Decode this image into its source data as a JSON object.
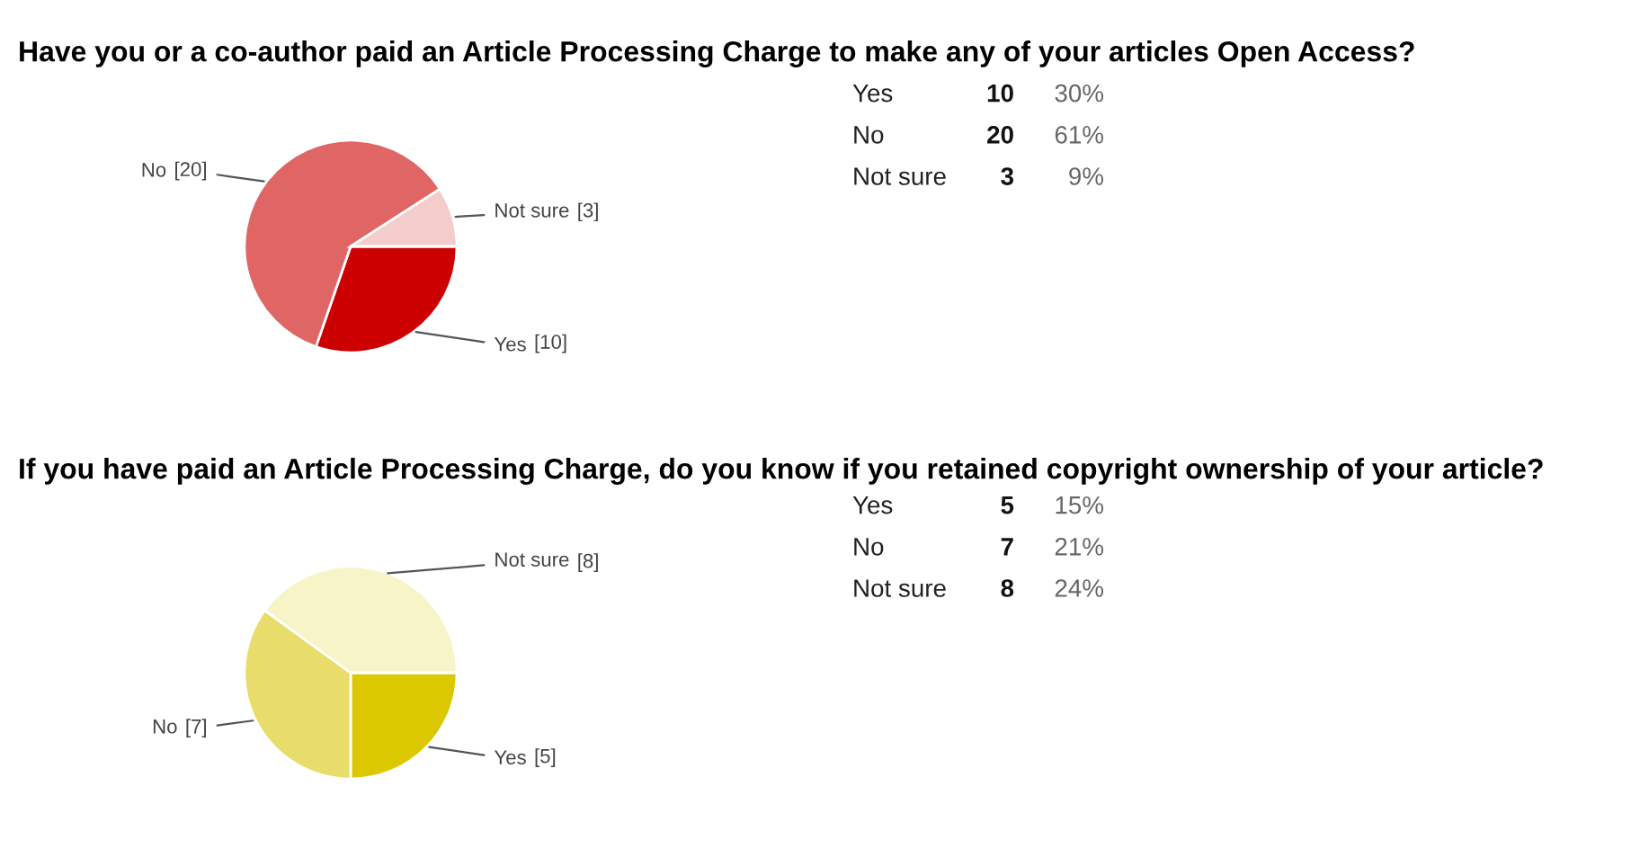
{
  "chart_data": [
    {
      "type": "pie",
      "title": "Have you or a co-author paid an Article Processing Charge to make any of your articles Open Access?",
      "categories": [
        "Yes",
        "No",
        "Not sure"
      ],
      "values": [
        10,
        20,
        3
      ],
      "colors": [
        "#cc0000",
        "#e06666",
        "#f4cccc"
      ],
      "value_labels": [
        "[10]",
        "[20]",
        "[3]"
      ]
    },
    {
      "type": "other",
      "annotations": [
        "Yes",
        "10",
        "30%",
        "No",
        "20",
        "61%",
        "Not sure",
        "3",
        "9%"
      ]
    },
    {
      "type": "pie",
      "title": "If you have paid an Article Processing Charge, do you know if you retained copyright ownership of your article?",
      "categories": [
        "Yes",
        "No",
        "Not sure"
      ],
      "values": [
        5,
        7,
        8
      ],
      "colors": [
        "#dcc800",
        "#e8dc6a",
        "#f7f4c8"
      ],
      "value_labels": [
        "[5]",
        "[7]",
        "[8]"
      ]
    },
    {
      "type": "other",
      "annotations": [
        "Yes",
        "5",
        "15%",
        "No",
        "7",
        "21%",
        "Not sure",
        "8",
        "24%"
      ]
    }
  ]
}
